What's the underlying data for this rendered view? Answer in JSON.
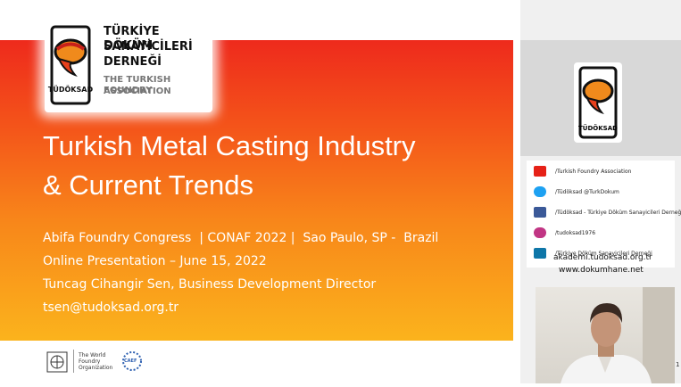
{
  "slide": {
    "logo": {
      "line1": "TÜRKİYE DÖKÜM",
      "line2": "SANAYİCİLERİ",
      "line3": "DERNEĞİ",
      "sub1": "THE TURKISH FOUNDRY",
      "sub2": "ASSOCIATION",
      "mark": "TÜDÖKSAD"
    },
    "title": [
      "Turkish Metal Casting Industry",
      "& Current Trends"
    ],
    "lines": [
      "Abifa Foundry Congress  | CONAF 2022 |  Sao Paulo, SP -  Brazil",
      "Online Presentation – June 15, 2022",
      "Tuncag Cihangir Sen, Business Development Director",
      "tsen@tudoksad.org.tr"
    ],
    "footer": {
      "wfo": [
        "The World",
        "Foundry",
        "Organization"
      ],
      "caef": "CAEF"
    }
  },
  "panel": {
    "logo_mark": "TÜDÖKSAD",
    "social": [
      "/Turkish Foundry Association",
      "/Tüdöksad @TurkDokum",
      "/Tüdöksad - Türkiye Döküm Sanayicileri Derneği",
      "/tudoksad1976",
      "/Türkiye Döküm Sanayicileri Derneği"
    ],
    "urls": [
      "akademi.tudoksad.org.tr",
      "www.dokumhane.net"
    ],
    "page": "1"
  }
}
